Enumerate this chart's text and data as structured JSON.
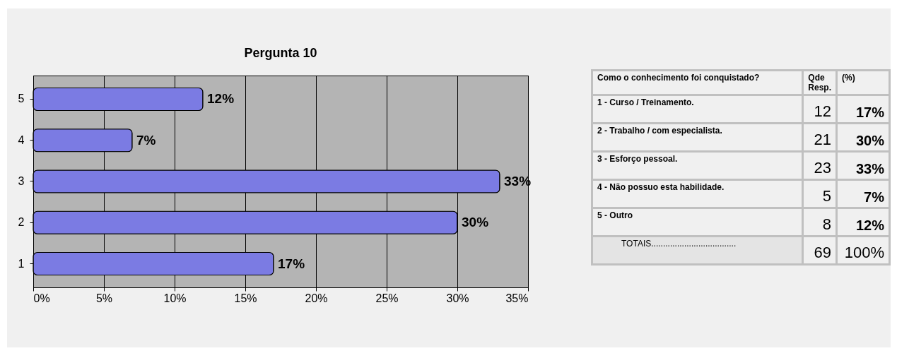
{
  "chart_data": [
    {
      "type": "bar",
      "title": "Pergunta 10",
      "orientation": "horizontal",
      "categories": [
        "5",
        "4",
        "3",
        "2",
        "1"
      ],
      "values": [
        12,
        7,
        33,
        30,
        17
      ],
      "value_labels": [
        "12%",
        "7%",
        "33%",
        "30%",
        "17%"
      ],
      "color": "#7b7be3",
      "xlim": [
        0,
        35
      ],
      "xticks": [
        {
          "value": 0,
          "label": "0%"
        },
        {
          "value": 5,
          "label": "5%"
        },
        {
          "value": 10,
          "label": "10%"
        },
        {
          "value": 15,
          "label": "15%"
        },
        {
          "value": 20,
          "label": "20%"
        },
        {
          "value": 25,
          "label": "25%"
        },
        {
          "value": 30,
          "label": "30%"
        },
        {
          "value": 35,
          "label": "35%"
        }
      ],
      "grid": "x"
    },
    {
      "type": "other",
      "title": "Como o conhecimento foi conquistado?",
      "data_labels": true,
      "categories": [
        "1 - Curso / Treinamento.",
        "2 - Trabalho / com especialista.",
        "3 - Esforço pessoal.",
        "4 - Não possuo esta habilidade.",
        "5 - Outro",
        "TOTAIS...................................."
      ],
      "series": [
        {
          "name": "Qde Resp.",
          "values": [
            12,
            21,
            23,
            5,
            8,
            69
          ]
        },
        {
          "name": "(%)",
          "values": [
            17,
            30,
            33,
            7,
            12,
            100
          ],
          "value_labels": [
            "17%",
            "30%",
            "33%",
            "7%",
            "12%",
            "100%"
          ]
        }
      ]
    }
  ]
}
